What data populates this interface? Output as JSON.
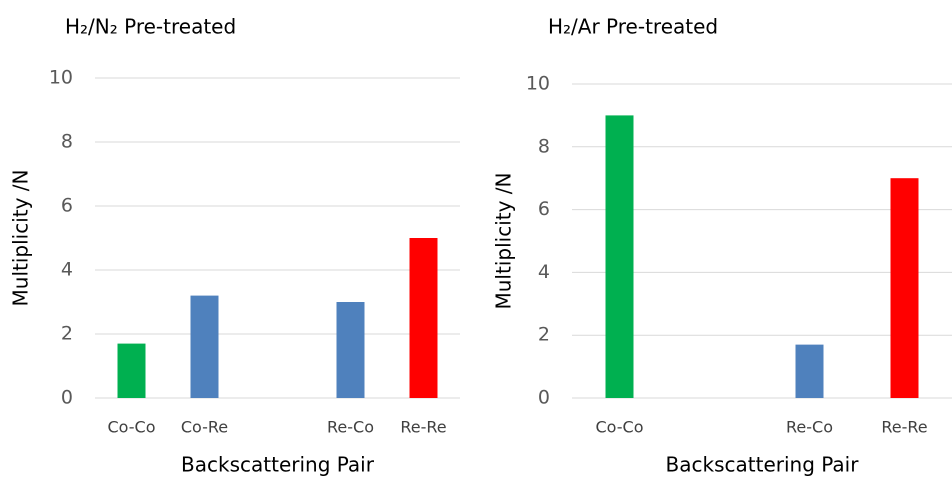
{
  "chart_data": [
    {
      "type": "bar",
      "title": "H₂/N₂ Pre-treated",
      "ylabel": "Multiplicity /N",
      "xlabel": "Backscattering Pair",
      "categories": [
        "Co-Co",
        "Co-Re",
        null,
        "Re-Co",
        "Re-Re"
      ],
      "values": [
        1.7,
        3.2,
        null,
        3.0,
        5.0
      ],
      "colors": [
        "#00b050",
        "#4f81bd",
        null,
        "#4f81bd",
        "#ff0000"
      ],
      "ylim": [
        0,
        10
      ],
      "yticks": [
        0,
        2,
        4,
        6,
        8,
        10
      ],
      "grid": true
    },
    {
      "type": "bar",
      "title": "H₂/Ar Pre-treated",
      "ylabel": "Multiplicity /N",
      "xlabel": "Backscattering Pair",
      "categories": [
        "Co-Co",
        null,
        "Re-Co",
        "Re-Re"
      ],
      "values": [
        9,
        null,
        1.7,
        7
      ],
      "colors": [
        "#00b050",
        null,
        "#4f81bd",
        "#ff0000"
      ],
      "ylim": [
        0,
        10
      ],
      "yticks": [
        0,
        2,
        4,
        6,
        8,
        10
      ],
      "grid": true
    }
  ]
}
